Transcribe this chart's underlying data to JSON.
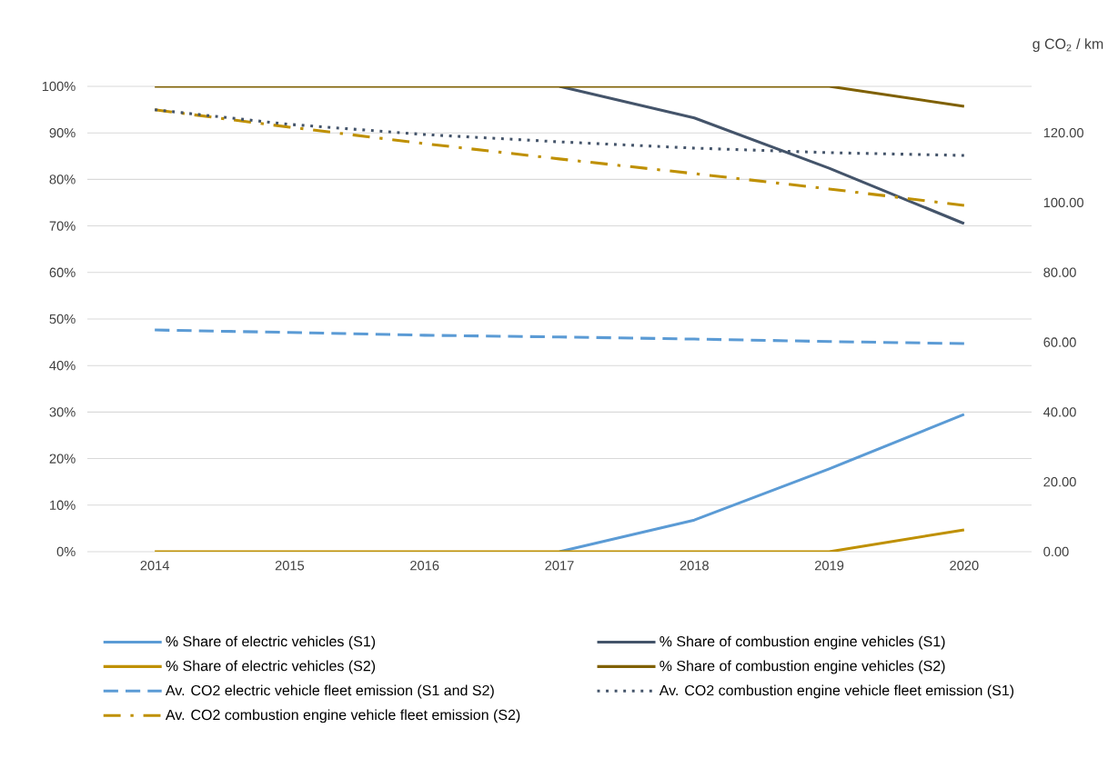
{
  "chart_data": {
    "type": "line",
    "categories": [
      "2014",
      "2015",
      "2016",
      "2017",
      "2018",
      "2019",
      "2020"
    ],
    "series": [
      {
        "name": "% Share of electric vehicles (S1)",
        "color": "#5b9bd5",
        "line_style": "solid",
        "values": [
          null,
          null,
          null,
          0,
          6.8,
          17.8,
          29.5
        ]
      },
      {
        "name": "% Share of combustion engine vehicles (S1)",
        "color": "#44546a",
        "line_style": "solid",
        "values": [
          null,
          null,
          null,
          100,
          93.2,
          82.4,
          70.5
        ]
      },
      {
        "name": "% Share of electric vehicles (S2)",
        "color": "#bf9000",
        "line_style": "solid",
        "values": [
          0,
          0,
          0,
          0,
          0,
          0,
          4.7
        ]
      },
      {
        "name": "% Share of combustion engine vehicles (S2)",
        "color": "#7f6000",
        "line_style": "solid",
        "values": [
          100,
          100,
          100,
          100,
          100,
          100,
          95.7
        ]
      },
      {
        "name": "Av. CO2 electric vehicle fleet emission (S1 and S2)",
        "color": "#5b9bd5",
        "line_style": "dashed",
        "axis": "y2",
        "values": [
          63.5,
          62.8,
          62.0,
          61.5,
          60.9,
          60.2,
          59.6
        ]
      },
      {
        "name": "Av. CO2 combustion engine vehicle fleet emission (S1)",
        "color": "#44546a",
        "line_style": "dotted",
        "axis": "y2",
        "values": [
          126.6,
          122.4,
          119.5,
          117.4,
          115.6,
          114.3,
          113.5
        ]
      },
      {
        "name": "Av. CO2 combustion engine vehicle fleet emission (S2)",
        "color": "#bf9000",
        "line_style": "dashdot",
        "axis": "y2",
        "values": [
          126.6,
          121.6,
          116.9,
          112.5,
          108.3,
          103.9,
          99.2
        ]
      }
    ],
    "ylim": [
      0,
      100
    ],
    "yticks": [
      {
        "value": 0,
        "label": "0%"
      },
      {
        "value": 10,
        "label": "10%"
      },
      {
        "value": 20,
        "label": "20%"
      },
      {
        "value": 30,
        "label": "30%"
      },
      {
        "value": 40,
        "label": "40%"
      },
      {
        "value": 50,
        "label": "50%"
      },
      {
        "value": 60,
        "label": "60%"
      },
      {
        "value": 70,
        "label": "70%"
      },
      {
        "value": 80,
        "label": "80%"
      },
      {
        "value": 90,
        "label": "90%"
      },
      {
        "value": 100,
        "label": "100%"
      }
    ],
    "y2lim": [
      0,
      133.3
    ],
    "y2ticks": [
      {
        "value": 0,
        "label": "0.00"
      },
      {
        "value": 20,
        "label": "20.00"
      },
      {
        "value": 40,
        "label": "40.00"
      },
      {
        "value": 60,
        "label": "60.00"
      },
      {
        "value": 80,
        "label": "80.00"
      },
      {
        "value": 100,
        "label": "100.00"
      },
      {
        "value": 120,
        "label": "120.00"
      }
    ],
    "y2label": "g CO$_{2}$ / km",
    "grid": "y",
    "legend": "bottom"
  }
}
